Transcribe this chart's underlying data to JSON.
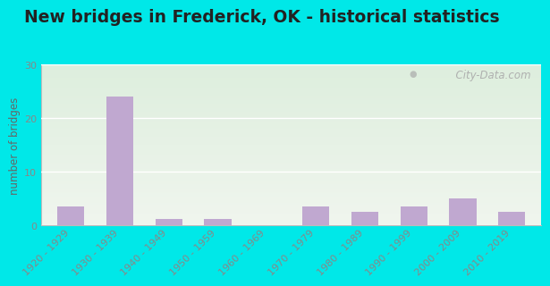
{
  "title": "New bridges in Frederick, OK - historical statistics",
  "ylabel": "number of bridges",
  "categories": [
    "1920 - 1929",
    "1930 - 1939",
    "1940 - 1949",
    "1950 - 1959",
    "1960 - 1969",
    "1970 - 1979",
    "1980 - 1989",
    "1990 - 1999",
    "2000 - 2009",
    "2010 - 2019"
  ],
  "values": [
    3.5,
    24,
    1.3,
    1.3,
    0,
    3.5,
    2.5,
    3.5,
    5,
    2.5
  ],
  "bar_color": "#c0a8d0",
  "background_outer": "#00e8e8",
  "grad_top": "#ddeedd",
  "grad_bottom": "#f0f5ee",
  "ylim": [
    0,
    30
  ],
  "yticks": [
    0,
    10,
    20,
    30
  ],
  "watermark": "  City-Data.com",
  "title_fontsize": 13.5,
  "tick_fontsize": 8,
  "ylabel_fontsize": 8.5,
  "ylabel_color": "#666666",
  "tick_color": "#888888",
  "title_color": "#222222"
}
